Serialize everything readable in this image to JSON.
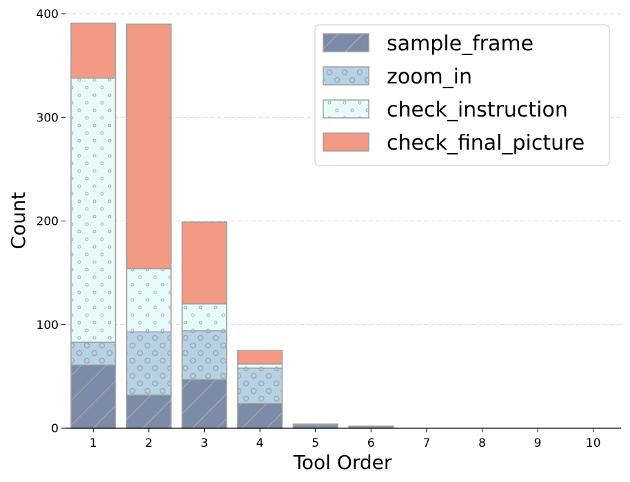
{
  "chart_data": {
    "type": "bar",
    "stacked": true,
    "title": "",
    "xlabel": "Tool Order",
    "ylabel": "Count",
    "ylim": [
      0,
      400
    ],
    "yticks": [
      0,
      100,
      200,
      300,
      400
    ],
    "grid": "horizontal dashed",
    "legend_position": "top-right",
    "categories": [
      "1",
      "2",
      "3",
      "4",
      "5",
      "6",
      "7",
      "8",
      "9",
      "10"
    ],
    "series": [
      {
        "name": "sample_frame",
        "color": "#7b8ba8",
        "pattern": "diagonal",
        "values": [
          61,
          32,
          47,
          24,
          3,
          1,
          0,
          0,
          0,
          0
        ]
      },
      {
        "name": "zoom_in",
        "color": "#b4d3e6",
        "pattern": "circles",
        "values": [
          22,
          61,
          47,
          34,
          1,
          0,
          0,
          0,
          0,
          0
        ]
      },
      {
        "name": "check_instruction",
        "color": "#e8fbfb",
        "pattern": "dots",
        "values": [
          255,
          61,
          26,
          4,
          0,
          0,
          0,
          0,
          0,
          0
        ]
      },
      {
        "name": "check_final_picture",
        "color": "#f29a84",
        "pattern": "none",
        "values": [
          53,
          236,
          79,
          13,
          0,
          1,
          0,
          0,
          0,
          0
        ]
      }
    ]
  }
}
